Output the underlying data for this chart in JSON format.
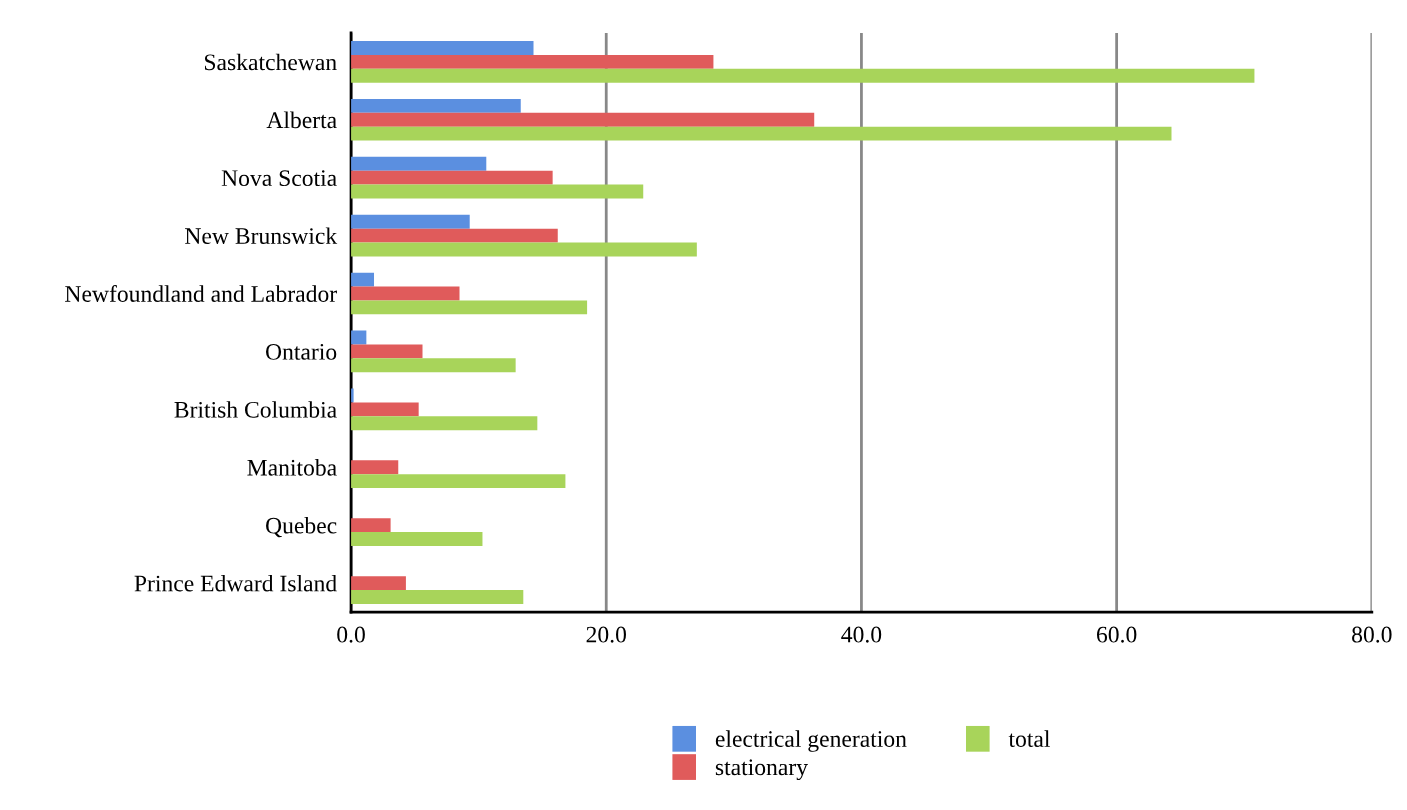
{
  "chart_data": {
    "type": "bar",
    "orientation": "horizontal",
    "categories": [
      "Saskatchewan",
      "Alberta",
      "Nova Scotia",
      "New Brunswick",
      "Newfoundland and Labrador",
      "Ontario",
      "British Columbia",
      "Manitoba",
      "Quebec",
      "Prince Edward Island"
    ],
    "series": [
      {
        "name": "electrical generation",
        "color": "#5b8fe0",
        "values": [
          14.3,
          13.3,
          10.6,
          9.3,
          1.8,
          1.2,
          0.2,
          0,
          0,
          0
        ]
      },
      {
        "name": "stationary",
        "color": "#e05b5b",
        "values": [
          28.4,
          36.3,
          15.8,
          16.2,
          8.5,
          5.6,
          5.3,
          3.7,
          3.1,
          4.3
        ]
      },
      {
        "name": "total",
        "color": "#a8d45a",
        "values": [
          70.8,
          64.3,
          22.9,
          27.1,
          18.5,
          12.9,
          14.6,
          16.8,
          10.3,
          13.5
        ]
      }
    ],
    "xlim": [
      0,
      80
    ],
    "xticks": [
      {
        "value": 0,
        "label": "0.0"
      },
      {
        "value": 20,
        "label": "20.0"
      },
      {
        "value": 40,
        "label": "40.0"
      },
      {
        "value": 60,
        "label": "60.0"
      },
      {
        "value": 80,
        "label": "80.0"
      }
    ],
    "grid": "x",
    "legend": "bottom"
  }
}
